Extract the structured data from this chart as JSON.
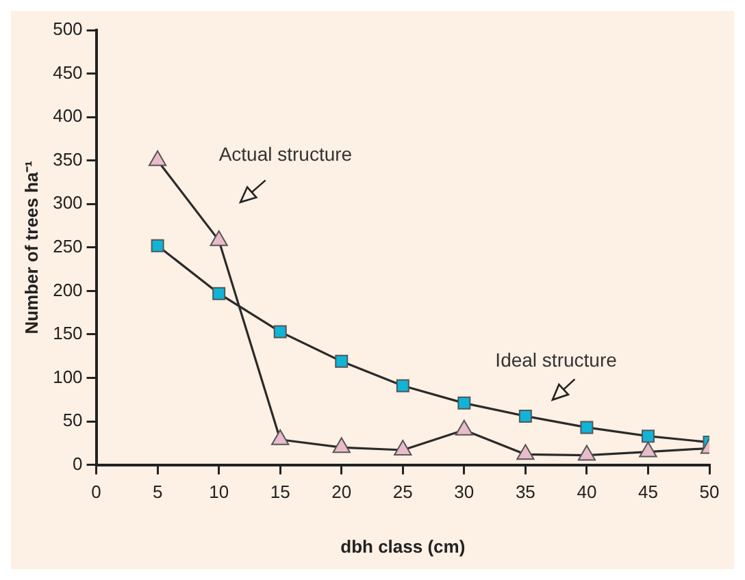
{
  "chart_data": {
    "type": "line",
    "xlabel": "dbh class (cm)",
    "ylabel": "Number of trees ha⁻¹",
    "x": [
      5,
      10,
      15,
      20,
      25,
      30,
      35,
      40,
      45,
      50
    ],
    "series": [
      {
        "name": "Actual structure",
        "color": "#e9bccb",
        "marker": "triangle",
        "values": [
          350,
          258,
          29,
          20,
          17,
          40,
          12,
          11,
          15,
          19
        ]
      },
      {
        "name": "Ideal structure",
        "color": "#10b4d8",
        "marker": "square",
        "values": [
          252,
          197,
          153,
          119,
          91,
          71,
          56,
          43,
          33,
          26
        ]
      }
    ],
    "xlim": [
      0,
      50
    ],
    "xticks": [
      0,
      5,
      10,
      15,
      20,
      25,
      30,
      35,
      40,
      45,
      50
    ],
    "ylim": [
      0,
      500
    ],
    "yticks": [
      0,
      50,
      100,
      150,
      200,
      250,
      300,
      350,
      400,
      450,
      500
    ],
    "grid": false,
    "legend": false,
    "line_style": "solid"
  }
}
